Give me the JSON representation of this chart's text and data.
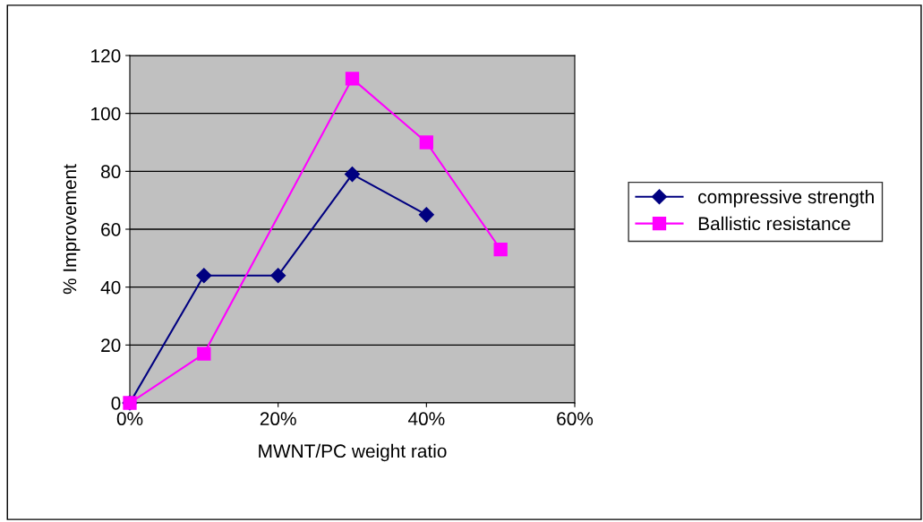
{
  "chart_data": {
    "type": "line",
    "xlabel": "MWNT/PC weight ratio",
    "ylabel": "% Improvement",
    "xlim": [
      0,
      60
    ],
    "xticks": [
      {
        "value": 0,
        "label": "0%"
      },
      {
        "value": 20,
        "label": "20%"
      },
      {
        "value": 40,
        "label": "40%"
      },
      {
        "value": 60,
        "label": "60%"
      }
    ],
    "ylim": [
      0,
      120
    ],
    "yticks": [
      0,
      20,
      40,
      60,
      80,
      100,
      120
    ],
    "grid": "y",
    "legend": "right",
    "series": [
      {
        "name": "compressive strength",
        "color": "#000080",
        "marker": "diamond",
        "x": [
          0,
          10,
          20,
          30,
          40
        ],
        "values": [
          0,
          44,
          44,
          79,
          65
        ]
      },
      {
        "name": "Ballistic resistance",
        "color": "#ff00ff",
        "marker": "square",
        "x": [
          0,
          10,
          30,
          40,
          50
        ],
        "values": [
          0,
          17,
          112,
          90,
          53
        ]
      }
    ]
  }
}
